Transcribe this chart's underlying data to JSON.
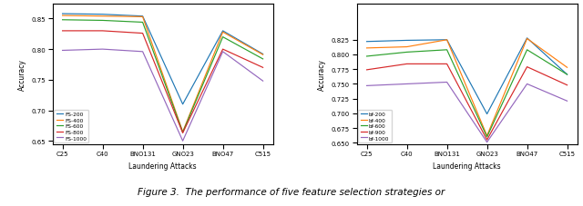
{
  "left": {
    "xlabel": "Laundering Attacks",
    "ylabel": "Accuracy",
    "xticks": [
      "C25",
      "C40",
      "BNO131",
      "GNO23",
      "BNO47",
      "C515"
    ],
    "ylim": [
      0.645,
      0.875
    ],
    "yticks": [
      0.65,
      0.7,
      0.75,
      0.8,
      0.85
    ],
    "series": [
      {
        "label": "FS-200",
        "color": "#1f77b4",
        "values": [
          0.858,
          0.857,
          0.854,
          0.71,
          0.83,
          0.792
        ]
      },
      {
        "label": "FS-400",
        "color": "#ff7f0e",
        "values": [
          0.855,
          0.854,
          0.853,
          0.665,
          0.828,
          0.791
        ]
      },
      {
        "label": "FS-600",
        "color": "#2ca02c",
        "values": [
          0.848,
          0.847,
          0.844,
          0.664,
          0.82,
          0.784
        ]
      },
      {
        "label": "FS-800",
        "color": "#d62728",
        "values": [
          0.83,
          0.83,
          0.826,
          0.663,
          0.8,
          0.77
        ]
      },
      {
        "label": "FS-1000",
        "color": "#9467bd",
        "values": [
          0.798,
          0.8,
          0.796,
          0.65,
          0.796,
          0.748
        ]
      }
    ]
  },
  "right": {
    "xlabel": "Laundering Attacks",
    "ylabel": "Accuracy",
    "xticks": [
      "C25",
      "C40",
      "BNO131",
      "GNO23",
      "BNO47",
      "C515"
    ],
    "ylim": [
      0.648,
      0.887
    ],
    "yticks": [
      0.65,
      0.675,
      0.7,
      0.725,
      0.75,
      0.775,
      0.8,
      0.825
    ],
    "series": [
      {
        "label": "bf-200",
        "color": "#1f77b4",
        "values": [
          0.822,
          0.824,
          0.825,
          0.699,
          0.828,
          0.766
        ]
      },
      {
        "label": "bf-400",
        "color": "#ff7f0e",
        "values": [
          0.811,
          0.813,
          0.825,
          0.662,
          0.827,
          0.778
        ]
      },
      {
        "label": "bf-600",
        "color": "#2ca02c",
        "values": [
          0.797,
          0.804,
          0.808,
          0.66,
          0.808,
          0.766
        ]
      },
      {
        "label": "bf-900",
        "color": "#d62728",
        "values": [
          0.774,
          0.784,
          0.784,
          0.655,
          0.779,
          0.748
        ]
      },
      {
        "label": "bf-1000",
        "color": "#9467bd",
        "values": [
          0.747,
          0.75,
          0.753,
          0.651,
          0.75,
          0.721
        ]
      }
    ]
  },
  "bottom_text": "Figure 3.  The performance of five feature selection strategies or"
}
